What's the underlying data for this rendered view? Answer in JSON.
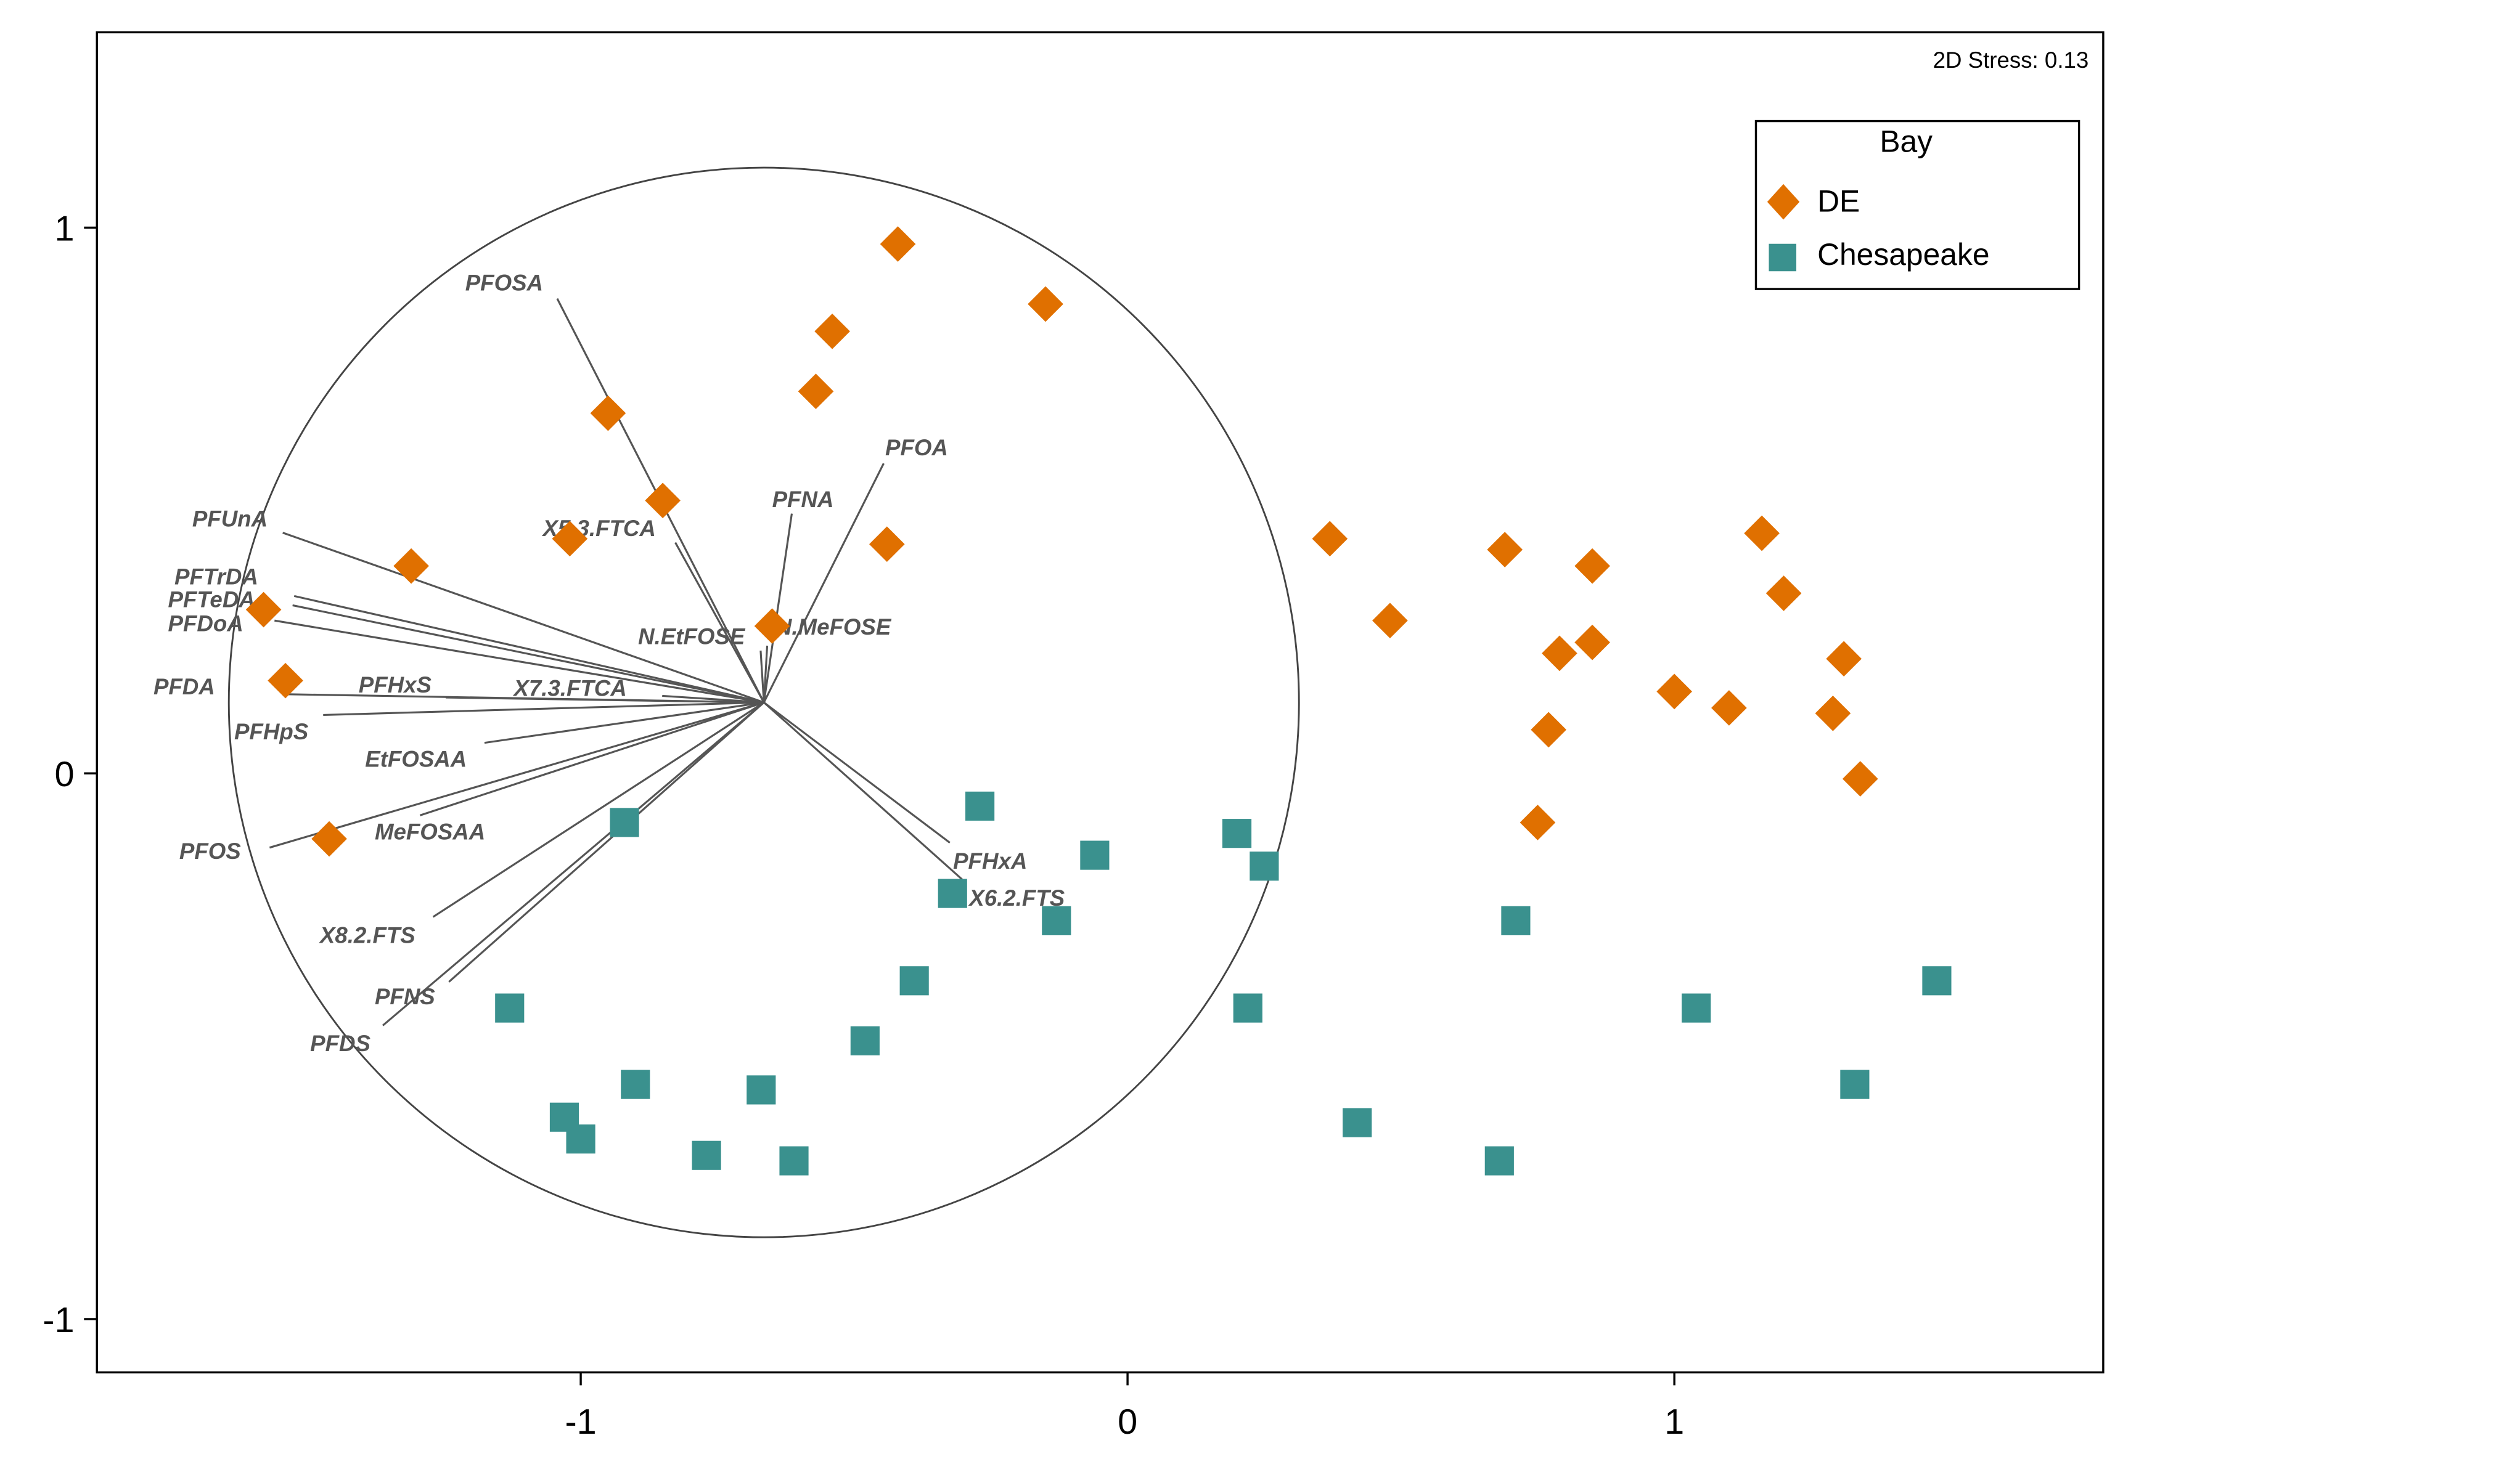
{
  "chart_data": {
    "type": "scatter",
    "title": "",
    "xlabel": "",
    "ylabel": "",
    "xlim": [
      -1.89,
      1.78
    ],
    "ylim": [
      -1.09,
      1.35
    ],
    "x_ticks": [
      "-1",
      "0",
      "1"
    ],
    "y_ticks": [
      "-1",
      "0",
      "1"
    ],
    "x_tick_values": [
      -1,
      0,
      1
    ],
    "y_tick_values": [
      -1,
      0,
      1
    ],
    "grid": false,
    "annotation": "2D Stress: 0.13",
    "legend": {
      "title": "Bay",
      "placement": "top-right"
    },
    "series": [
      {
        "name": "DE",
        "marker": "diamond",
        "color": "#E07000",
        "points": [
          [
            -0.42,
            0.97
          ],
          [
            -0.15,
            0.86
          ],
          [
            -0.54,
            0.81
          ],
          [
            -0.57,
            0.7
          ],
          [
            -0.95,
            0.66
          ],
          [
            -0.85,
            0.5
          ],
          [
            -1.02,
            0.43
          ],
          [
            -0.44,
            0.42
          ],
          [
            -1.31,
            0.38
          ],
          [
            -1.58,
            0.3
          ],
          [
            -0.65,
            0.27
          ],
          [
            -1.54,
            0.17
          ],
          [
            -1.46,
            -0.12
          ],
          [
            0.37,
            0.43
          ],
          [
            0.69,
            0.41
          ],
          [
            0.85,
            0.38
          ],
          [
            0.48,
            0.28
          ],
          [
            0.85,
            0.24
          ],
          [
            0.79,
            0.22
          ],
          [
            0.77,
            0.08
          ],
          [
            0.75,
            -0.09
          ],
          [
            1.0,
            0.15
          ],
          [
            1.1,
            0.12
          ],
          [
            1.16,
            0.44
          ],
          [
            1.2,
            0.33
          ],
          [
            1.31,
            0.21
          ],
          [
            1.29,
            0.11
          ],
          [
            1.34,
            -0.01
          ]
        ]
      },
      {
        "name": "Chesapeake",
        "marker": "square",
        "color": "#3A918E",
        "points": [
          [
            -0.27,
            -0.06
          ],
          [
            -0.06,
            -0.15
          ],
          [
            -0.92,
            -0.09
          ],
          [
            -0.32,
            -0.22
          ],
          [
            -0.13,
            -0.27
          ],
          [
            0.2,
            -0.11
          ],
          [
            0.25,
            -0.17
          ],
          [
            -0.39,
            -0.38
          ],
          [
            -0.48,
            -0.49
          ],
          [
            -1.13,
            -0.43
          ],
          [
            -0.9,
            -0.57
          ],
          [
            -0.67,
            -0.58
          ],
          [
            -1.03,
            -0.63
          ],
          [
            -1.0,
            -0.67
          ],
          [
            -0.77,
            -0.7
          ],
          [
            -0.61,
            -0.71
          ],
          [
            0.22,
            -0.43
          ],
          [
            0.42,
            -0.64
          ],
          [
            0.71,
            -0.27
          ],
          [
            0.68,
            -0.71
          ],
          [
            1.04,
            -0.43
          ],
          [
            1.33,
            -0.57
          ],
          [
            1.48,
            -0.38
          ]
        ]
      }
    ],
    "vectors": {
      "origin": [
        -0.665,
        0.13
      ],
      "circle_radius": 0.98,
      "color": "#555555",
      "items": [
        {
          "label": "PFOSA",
          "end": [
            -1.043,
            0.87
          ]
        },
        {
          "label": "PFOA",
          "end": [
            -0.446,
            0.568
          ]
        },
        {
          "label": "PFNA",
          "end": [
            -0.614,
            0.476
          ]
        },
        {
          "label": "X5.3.FTCA",
          "end": [
            -0.827,
            0.423
          ]
        },
        {
          "label": "PFUnA",
          "end": [
            -1.545,
            0.441
          ]
        },
        {
          "label": "PFTrDA",
          "end": [
            -1.524,
            0.325
          ]
        },
        {
          "label": "PFTeDA",
          "end": [
            -1.527,
            0.308
          ]
        },
        {
          "label": "PFDoA",
          "end": [
            -1.56,
            0.28
          ]
        },
        {
          "label": "N.EtFOSE",
          "end": [
            -0.671,
            0.225
          ]
        },
        {
          "label": "N.MeFOSE",
          "end": [
            -0.659,
            0.234
          ]
        },
        {
          "label": "PFDA",
          "end": [
            -1.536,
            0.145
          ]
        },
        {
          "label": "PFHxS",
          "end": [
            -1.247,
            0.139
          ]
        },
        {
          "label": "X7.3.FTCA",
          "end": [
            -0.851,
            0.142
          ]
        },
        {
          "label": "PFHpS",
          "end": [
            -1.471,
            0.107
          ]
        },
        {
          "label": "EtFOSAA",
          "end": [
            -1.176,
            0.056
          ]
        },
        {
          "label": "PFOS",
          "end": [
            -1.569,
            -0.136
          ]
        },
        {
          "label": "MeFOSAA",
          "end": [
            -1.294,
            -0.077
          ]
        },
        {
          "label": "X8.2.FTS",
          "end": [
            -1.27,
            -0.263
          ]
        },
        {
          "label": "PFNS",
          "end": [
            -1.241,
            -0.382
          ]
        },
        {
          "label": "PFDS",
          "end": [
            -1.362,
            -0.462
          ]
        },
        {
          "label": "PFHxA",
          "end": [
            -0.325,
            -0.127
          ]
        },
        {
          "label": "X6.2.FTS",
          "end": [
            -0.295,
            -0.201
          ]
        }
      ]
    }
  }
}
